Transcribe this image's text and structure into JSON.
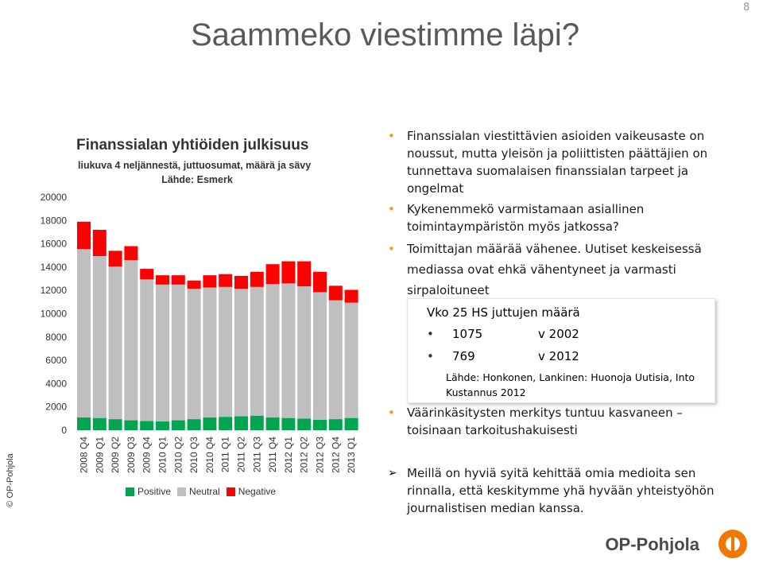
{
  "page_number": "8",
  "title": "Saammeko viestimme läpi?",
  "copyright": "© OP-Pohjola",
  "chart_data": {
    "type": "bar",
    "stacked": true,
    "title": "Finanssialan yhtiöiden julkisuus",
    "subtitle": "liukuva 4 neljännestä, juttuosumat, määrä ja sävy",
    "source": "Lähde: Esmerk",
    "categories": [
      "2008 Q4",
      "2009 Q1",
      "2009 Q2",
      "2009 Q3",
      "2009 Q4",
      "2010 Q1",
      "2010 Q2",
      "2010 Q3",
      "2010 Q4",
      "2011 Q1",
      "2011 Q2",
      "2011 Q3",
      "2011 Q4",
      "2012 Q1",
      "2012 Q2",
      "2012 Q3",
      "2012 Q4",
      "2013 Q1"
    ],
    "series": [
      {
        "name": "Positive",
        "color": "#00a550",
        "values": [
          1100,
          1050,
          950,
          850,
          800,
          750,
          850,
          950,
          1100,
          1150,
          1200,
          1250,
          1100,
          1050,
          1000,
          900,
          950,
          1050
        ]
      },
      {
        "name": "Neutral",
        "color": "#bfbfbf",
        "values": [
          14450,
          13900,
          13100,
          13750,
          12150,
          11750,
          11650,
          11200,
          11150,
          11150,
          10950,
          11050,
          11450,
          11550,
          11350,
          10950,
          10200,
          9900
        ]
      },
      {
        "name": "Negative",
        "color": "#ff0000",
        "values": [
          2350,
          2250,
          1350,
          1200,
          900,
          800,
          800,
          700,
          1050,
          1100,
          1100,
          1300,
          1700,
          1900,
          2150,
          1750,
          1250,
          1100
        ]
      }
    ],
    "ylim": [
      0,
      20000
    ],
    "yticks": [
      0,
      2000,
      4000,
      6000,
      8000,
      10000,
      12000,
      14000,
      16000,
      18000,
      20000
    ],
    "legend_position": "bottom"
  },
  "bullets_top": [
    "Finanssialan viestittävien asioiden vaikeusaste on noussut, mutta yleisön ja poliittisten päättäjien on tunnettava suomalaisen finanssialan tarpeet ja ongelmat",
    "Kykenemmekö varmistamaan asiallinen toimintaympäristön myös jatkossa?",
    "Toimittajan määrää vähenee. Uutiset keskeisessä mediassa ovat ehkä vähentyneet ja varmasti sirpaloituneet"
  ],
  "box": {
    "heading": "Vko 25 HS juttujen määrä",
    "rows": [
      {
        "count": "1075",
        "year": "v 2002"
      },
      {
        "count": "769",
        "year": "v 2012"
      }
    ],
    "source": "Lähde: Honkonen, Lankinen: Huonoja Uutisia, Into Kustannus 2012"
  },
  "bullet_bottom": "Väärinkäsitysten merkitys tuntuu kasvaneen – toisinaan tarkoitushakuisesti",
  "bullet_final": "Meillä on hyviä syitä kehittää omia medioita sen rinnalla, että keskitymme yhä hyvään yhteistyöhön journalistisen median kanssa.",
  "footer_brand": "OP-Pohjola"
}
